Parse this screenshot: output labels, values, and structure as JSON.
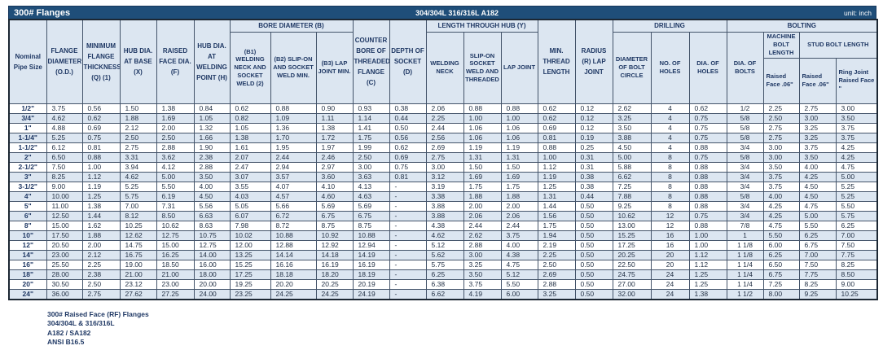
{
  "title_bar": {
    "title": "300# Flanges",
    "material": "304/304L 316/316L A182",
    "unit": "unit: inch"
  },
  "colors": {
    "bar_bg": "#1f4e79",
    "header_bg": "#dce6f1",
    "stripe_bg": "#dce6f1",
    "header_text": "#1f3864",
    "grid_line": "#44546a"
  },
  "header": {
    "pipe": "Nominal Pipe Size",
    "od": "FLANGE DIAMETER (O.D.)",
    "q": "MINIMUM FLANGE THICKNESS (Q) (1)",
    "x": "HUB DIA. AT BASE (X)",
    "f": "RAISED FACE DIA. (F)",
    "h": "HUB DIA. AT WELDING POINT (H)",
    "bore_group": "BORE DIAMETER (B)",
    "b1": "(B1) WELDING NECK AND SOCKET WELD (2)",
    "b2": "(B2) SLIP-ON AND SOCKET WELD MIN.",
    "b3": "(B3) LAP JOINT MIN.",
    "c": "COUNTER BORE OF THREADED FLANGE (C)",
    "d": "DEPTH OF SOCKET (D)",
    "hub_group": "LENGTH THROUGH HUB (Y)",
    "wn": "WELDING NECK",
    "so": "SLIP-ON SOCKET WELD AND THREADED",
    "lj": "LAP JOINT",
    "mtl": "MIN. THREAD LENGTH",
    "radius": "RADIUS (R) LAP JOINT",
    "drilling_group": "DRILLING",
    "circle": "DIAMETER OF BOLT CIRCLE",
    "holes_no": "NO. OF HOLES",
    "holes_dia": "DIA. OF HOLES",
    "bolting_group": "BOLTING",
    "bolts_dia": "DIA. OF BOLTS",
    "machine": "MACHINE BOLT LENGTH",
    "stud": "STUD BOLT LENGTH",
    "machine_sub": "Raised Face .06\"",
    "stud_sub1": "Raised Face .06\"",
    "stud_sub2": "Ring Joint Raised Face \""
  },
  "rows": [
    [
      "1/2\"",
      "3.75",
      "0.56",
      "1.50",
      "1.38",
      "0.84",
      "0.62",
      "0.88",
      "0.90",
      "0.93",
      "0.38",
      "2.06",
      "0.88",
      "0.88",
      "0.62",
      "0.12",
      "2.62",
      "4",
      "0.62",
      "1/2",
      "2.25",
      "2.75",
      "3.00"
    ],
    [
      "3/4\"",
      "4.62",
      "0.62",
      "1.88",
      "1.69",
      "1.05",
      "0.82",
      "1.09",
      "1.11",
      "1.14",
      "0.44",
      "2.25",
      "1.00",
      "1.00",
      "0.62",
      "0.12",
      "3.25",
      "4",
      "0.75",
      "5/8",
      "2.50",
      "3.00",
      "3.50"
    ],
    [
      "1\"",
      "4.88",
      "0.69",
      "2.12",
      "2.00",
      "1.32",
      "1.05",
      "1.36",
      "1.38",
      "1.41",
      "0.50",
      "2.44",
      "1.06",
      "1.06",
      "0.69",
      "0.12",
      "3.50",
      "4",
      "0.75",
      "5/8",
      "2.75",
      "3.25",
      "3.75"
    ],
    [
      "1-1/4\"",
      "5.25",
      "0.75",
      "2.50",
      "2.50",
      "1.66",
      "1.38",
      "1.70",
      "1.72",
      "1.75",
      "0.56",
      "2.56",
      "1.06",
      "1.06",
      "0.81",
      "0.19",
      "3.88",
      "4",
      "0.75",
      "5/8",
      "2.75",
      "3.25",
      "3.75"
    ],
    [
      "1-1/2\"",
      "6.12",
      "0.81",
      "2.75",
      "2.88",
      "1.90",
      "1.61",
      "1.95",
      "1.97",
      "1.99",
      "0.62",
      "2.69",
      "1.19",
      "1.19",
      "0.88",
      "0.25",
      "4.50",
      "4",
      "0.88",
      "3/4",
      "3.00",
      "3.75",
      "4.25"
    ],
    [
      "2\"",
      "6.50",
      "0.88",
      "3.31",
      "3.62",
      "2.38",
      "2.07",
      "2.44",
      "2.46",
      "2.50",
      "0.69",
      "2.75",
      "1.31",
      "1.31",
      "1.00",
      "0.31",
      "5.00",
      "8",
      "0.75",
      "5/8",
      "3.00",
      "3.50",
      "4.25"
    ],
    [
      "2-1/2\"",
      "7.50",
      "1.00",
      "3.94",
      "4.12",
      "2.88",
      "2.47",
      "2.94",
      "2.97",
      "3.00",
      "0.75",
      "3.00",
      "1.50",
      "1.50",
      "1.12",
      "0.31",
      "5.88",
      "8",
      "0.88",
      "3/4",
      "3.50",
      "4.00",
      "4.75"
    ],
    [
      "3\"",
      "8.25",
      "1.12",
      "4.62",
      "5.00",
      "3.50",
      "3.07",
      "3.57",
      "3.60",
      "3.63",
      "0.81",
      "3.12",
      "1.69",
      "1.69",
      "1.19",
      "0.38",
      "6.62",
      "8",
      "0.88",
      "3/4",
      "3.75",
      "4.25",
      "5.00"
    ],
    [
      "3-1/2\"",
      "9.00",
      "1.19",
      "5.25",
      "5.50",
      "4.00",
      "3.55",
      "4.07",
      "4.10",
      "4.13",
      "-",
      "3.19",
      "1.75",
      "1.75",
      "1.25",
      "0.38",
      "7.25",
      "8",
      "0.88",
      "3/4",
      "3.75",
      "4.50",
      "5.25"
    ],
    [
      "4\"",
      "10.00",
      "1.25",
      "5.75",
      "6.19",
      "4.50",
      "4.03",
      "4.57",
      "4.60",
      "4.63",
      "-",
      "3.38",
      "1.88",
      "1.88",
      "1.31",
      "0.44",
      "7.88",
      "8",
      "0.88",
      "5/8",
      "4.00",
      "4.50",
      "5.25"
    ],
    [
      "5\"",
      "11.00",
      "1.38",
      "7.00",
      "7.31",
      "5.56",
      "5.05",
      "5.66",
      "5.69",
      "5.69",
      "-",
      "3.88",
      "2.00",
      "2.00",
      "1.44",
      "0.50",
      "9.25",
      "8",
      "0.88",
      "3/4",
      "4.25",
      "4.75",
      "5.50"
    ],
    [
      "6\"",
      "12.50",
      "1.44",
      "8.12",
      "8.50",
      "6.63",
      "6.07",
      "6.72",
      "6.75",
      "6.75",
      "-",
      "3.88",
      "2.06",
      "2.06",
      "1.56",
      "0.50",
      "10.62",
      "12",
      "0.75",
      "3/4",
      "4.25",
      "5.00",
      "5.75"
    ],
    [
      "8\"",
      "15.00",
      "1.62",
      "10.25",
      "10.62",
      "8.63",
      "7.98",
      "8.72",
      "8.75",
      "8.75",
      "-",
      "4.38",
      "2.44",
      "2.44",
      "1.75",
      "0.50",
      "13.00",
      "12",
      "0.88",
      "7/8",
      "4.75",
      "5.50",
      "6.25"
    ],
    [
      "10\"",
      "17.50",
      "1.88",
      "12.62",
      "12.75",
      "10.75",
      "10.02",
      "10.88",
      "10.92",
      "10.88",
      "-",
      "4.62",
      "2.62",
      "3.75",
      "1.94",
      "0.50",
      "15.25",
      "16",
      "1.00",
      "1",
      "5.50",
      "6.25",
      "7.00"
    ],
    [
      "12\"",
      "20.50",
      "2.00",
      "14.75",
      "15.00",
      "12.75",
      "12.00",
      "12.88",
      "12.92",
      "12.94",
      "-",
      "5.12",
      "2.88",
      "4.00",
      "2.19",
      "0.50",
      "17.25",
      "16",
      "1.00",
      "1 1/8",
      "6.00",
      "6.75",
      "7.50"
    ],
    [
      "14\"",
      "23.00",
      "2.12",
      "16.75",
      "16.25",
      "14.00",
      "13.25",
      "14.14",
      "14.18",
      "14.19",
      "-",
      "5.62",
      "3.00",
      "4.38",
      "2.25",
      "0.50",
      "20.25",
      "20",
      "1.12",
      "1 1/8",
      "6.25",
      "7.00",
      "7.75"
    ],
    [
      "16\"",
      "25.50",
      "2.25",
      "19.00",
      "18.50",
      "16.00",
      "15.25",
      "16.16",
      "16.19",
      "16.19",
      "-",
      "5.75",
      "3.25",
      "4.75",
      "2.50",
      "0.50",
      "22.50",
      "20",
      "1.12",
      "1 1/4",
      "6.50",
      "7.50",
      "8.25"
    ],
    [
      "18\"",
      "28.00",
      "2.38",
      "21.00",
      "21.00",
      "18.00",
      "17.25",
      "18.18",
      "18.20",
      "18.19",
      "-",
      "6.25",
      "3.50",
      "5.12",
      "2.69",
      "0.50",
      "24.75",
      "24",
      "1.25",
      "1 1/4",
      "6.75",
      "7.75",
      "8.50"
    ],
    [
      "20\"",
      "30.50",
      "2.50",
      "23.12",
      "23.00",
      "20.00",
      "19.25",
      "20.20",
      "20.25",
      "20.19",
      "-",
      "6.38",
      "3.75",
      "5.50",
      "2.88",
      "0.50",
      "27.00",
      "24",
      "1.25",
      "1 1/4",
      "7.25",
      "8.25",
      "9.00"
    ],
    [
      "24\"",
      "36.00",
      "2.75",
      "27.62",
      "27.25",
      "24.00",
      "23.25",
      "24.25",
      "24.25",
      "24.19",
      "-",
      "6.62",
      "4.19",
      "6.00",
      "3.25",
      "0.50",
      "32.00",
      "24",
      "1.38",
      "1 1/2",
      "8.00",
      "9.25",
      "10.25"
    ]
  ],
  "center_columns": [
    0,
    17,
    19
  ],
  "footnotes": [
    "300# Raised Face (RF) Flanges",
    "304/304L & 316/316L",
    "A182 / SA182",
    "ANSI B16.5"
  ]
}
